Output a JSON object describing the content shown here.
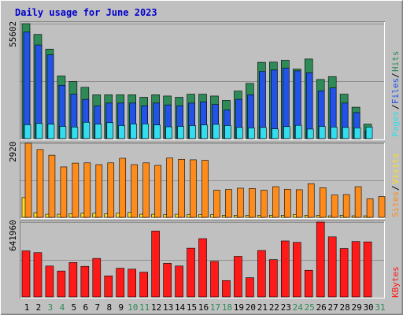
{
  "title": "Daily usage for June 2023",
  "colors": {
    "background": "#c0c0c0",
    "title": "#0000cc",
    "hits": "#2e8b57",
    "files": "#2253e6",
    "pages": "#33ddee",
    "visits": "#ffdd22",
    "sites": "#ff8c1a",
    "kbytes": "#ff1a1a",
    "day_weekday": "#000000",
    "day_weekend": "#2e8b57"
  },
  "chart_data": [
    {
      "type": "bar",
      "name": "hits-files-pages",
      "categories": [
        "1",
        "2",
        "3",
        "4",
        "5",
        "6",
        "7",
        "8",
        "9",
        "10",
        "11",
        "12",
        "13",
        "14",
        "15",
        "16",
        "17",
        "18",
        "19",
        "20",
        "21",
        "22",
        "23",
        "24",
        "25",
        "26",
        "27",
        "28",
        "29",
        "30",
        "31"
      ],
      "weekend_days": [
        "3",
        "4",
        "10",
        "11",
        "17",
        "18",
        "24",
        "25",
        "31"
      ],
      "ymax_label": "55602",
      "ylim": [
        0,
        55602
      ],
      "legend": [
        "Pages",
        "Files",
        "Hits"
      ],
      "series": [
        {
          "name": "Hits",
          "values": [
            55602,
            50400,
            43300,
            30300,
            27600,
            24800,
            21200,
            21200,
            21200,
            21200,
            20000,
            21200,
            20600,
            20000,
            21500,
            21500,
            20600,
            18500,
            23000,
            26700,
            36900,
            37000,
            37900,
            33600,
            38500,
            28600,
            30000,
            21500,
            15200,
            7000,
            0
          ]
        },
        {
          "name": "Files",
          "values": [
            51500,
            45300,
            40500,
            25800,
            21500,
            19000,
            15800,
            17200,
            17200,
            17200,
            15900,
            17200,
            16300,
            15900,
            17200,
            17800,
            16500,
            13800,
            19000,
            21200,
            32500,
            33200,
            34100,
            32800,
            31800,
            23100,
            24500,
            17200,
            12600,
            3800,
            0
          ]
        },
        {
          "name": "Pages",
          "values": [
            6700,
            7300,
            7000,
            5900,
            5600,
            7900,
            7000,
            7700,
            6300,
            7100,
            7100,
            6600,
            5700,
            5900,
            6300,
            6600,
            6900,
            6300,
            5400,
            5200,
            5400,
            4700,
            5800,
            6400,
            4600,
            5900,
            5600,
            5400,
            5200,
            5600,
            0
          ]
        }
      ]
    },
    {
      "type": "bar",
      "name": "visits-sites",
      "categories": [
        "1",
        "2",
        "3",
        "4",
        "5",
        "6",
        "7",
        "8",
        "9",
        "10",
        "11",
        "12",
        "13",
        "14",
        "15",
        "16",
        "17",
        "18",
        "19",
        "20",
        "21",
        "22",
        "23",
        "24",
        "25",
        "26",
        "27",
        "28",
        "29",
        "30",
        "31"
      ],
      "ymax_label": "2920",
      "ylim": [
        0,
        2920
      ],
      "legend": [
        "Sites",
        "Visits"
      ],
      "series": [
        {
          "name": "Visits",
          "values": [
            780,
            184,
            122,
            122,
            142,
            163,
            163,
            142,
            163,
            194,
            122,
            122,
            102,
            122,
            102,
            102,
            102,
            82,
            82,
            82,
            82,
            82,
            82,
            102,
            82,
            82,
            61,
            82,
            61,
            61,
            0
          ]
        },
        {
          "name": "Sites",
          "values": [
            2920,
            2675,
            2450,
            1990,
            2140,
            2150,
            2080,
            2150,
            2330,
            2080,
            2150,
            2050,
            2340,
            2290,
            2270,
            2250,
            1070,
            1100,
            1150,
            1140,
            1070,
            1210,
            1110,
            1090,
            1330,
            1170,
            880,
            900,
            1210,
            730,
            820
          ]
        }
      ]
    },
    {
      "type": "bar",
      "name": "kbytes",
      "categories": [
        "1",
        "2",
        "3",
        "4",
        "5",
        "6",
        "7",
        "8",
        "9",
        "10",
        "11",
        "12",
        "13",
        "14",
        "15",
        "16",
        "17",
        "18",
        "19",
        "20",
        "21",
        "22",
        "23",
        "24",
        "25",
        "26",
        "27",
        "28",
        "29",
        "30",
        "31"
      ],
      "ymax_label": "641960",
      "ylim": [
        0,
        641960
      ],
      "legend": [
        "KBytes"
      ],
      "series": [
        {
          "name": "KBytes",
          "values": [
            395000,
            380000,
            265000,
            222000,
            295000,
            262000,
            330000,
            180000,
            246000,
            238000,
            212000,
            565000,
            288000,
            265000,
            418000,
            500000,
            305000,
            140000,
            348000,
            165000,
            398000,
            320000,
            480000,
            468000,
            228000,
            641960,
            515000,
            415000,
            475000,
            472000,
            0
          ]
        }
      ]
    }
  ]
}
